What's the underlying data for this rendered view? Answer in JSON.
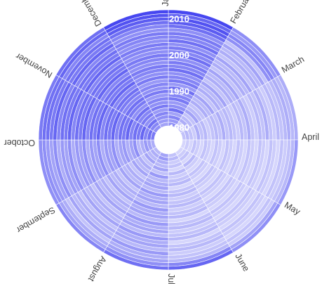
{
  "chart_data": {
    "type": "heatmap",
    "layout": "radial",
    "title": "",
    "months": [
      "January",
      "February",
      "March",
      "April",
      "May",
      "June",
      "July",
      "August",
      "September",
      "October",
      "November",
      "December"
    ],
    "year_start": 1981,
    "year_end": 2012,
    "year_labels": [
      "1980",
      "1990",
      "2000",
      "2010"
    ],
    "color_low": "#ffffff",
    "color_high": "#3333ee",
    "value_range": [
      0,
      1
    ],
    "values_by_year": [
      [
        0.55,
        0.3,
        0.3,
        0.2,
        0.2,
        0.3,
        0.45,
        0.35,
        0.4,
        0.65,
        0.55,
        0.45
      ],
      [
        0.5,
        0.25,
        0.35,
        0.25,
        0.25,
        0.35,
        0.5,
        0.4,
        0.45,
        0.7,
        0.6,
        0.5
      ],
      [
        0.6,
        0.4,
        0.3,
        0.2,
        0.3,
        0.25,
        0.4,
        0.35,
        0.5,
        0.6,
        0.7,
        0.55
      ],
      [
        0.45,
        0.35,
        0.25,
        0.3,
        0.2,
        0.3,
        0.35,
        0.45,
        0.4,
        0.75,
        0.55,
        0.6
      ],
      [
        0.7,
        0.3,
        0.4,
        0.25,
        0.35,
        0.2,
        0.45,
        0.3,
        0.35,
        0.65,
        0.65,
        0.5
      ],
      [
        0.55,
        0.45,
        0.3,
        0.2,
        0.25,
        0.35,
        0.3,
        0.4,
        0.55,
        0.7,
        0.6,
        0.65
      ],
      [
        0.5,
        0.35,
        0.35,
        0.3,
        0.2,
        0.25,
        0.5,
        0.35,
        0.45,
        0.6,
        0.7,
        0.55
      ],
      [
        0.65,
        0.3,
        0.25,
        0.25,
        0.3,
        0.3,
        0.35,
        0.45,
        0.4,
        0.75,
        0.55,
        0.6
      ],
      [
        0.6,
        0.4,
        0.3,
        0.2,
        0.25,
        0.35,
        0.4,
        0.3,
        0.5,
        0.65,
        0.65,
        0.5
      ],
      [
        0.55,
        0.35,
        0.35,
        0.3,
        0.2,
        0.2,
        0.45,
        0.4,
        0.45,
        0.7,
        0.7,
        0.65
      ],
      [
        0.7,
        0.45,
        0.3,
        0.25,
        0.3,
        0.3,
        0.35,
        0.35,
        0.4,
        0.6,
        0.6,
        0.55
      ],
      [
        0.5,
        0.3,
        0.4,
        0.2,
        0.25,
        0.35,
        0.5,
        0.45,
        0.55,
        0.75,
        0.65,
        0.6
      ],
      [
        0.65,
        0.4,
        0.3,
        0.3,
        0.2,
        0.25,
        0.4,
        0.3,
        0.45,
        0.65,
        0.7,
        0.5
      ],
      [
        0.6,
        0.35,
        0.35,
        0.25,
        0.3,
        0.3,
        0.45,
        0.4,
        0.5,
        0.7,
        0.6,
        0.65
      ],
      [
        0.55,
        0.45,
        0.3,
        0.2,
        0.25,
        0.35,
        0.35,
        0.35,
        0.4,
        0.6,
        0.75,
        0.55
      ],
      [
        0.7,
        0.3,
        0.25,
        0.3,
        0.2,
        0.25,
        0.5,
        0.45,
        0.55,
        0.75,
        0.65,
        0.6
      ],
      [
        0.6,
        0.4,
        0.35,
        0.25,
        0.3,
        0.3,
        0.4,
        0.3,
        0.45,
        0.65,
        0.7,
        0.65
      ],
      [
        0.65,
        0.35,
        0.3,
        0.2,
        0.25,
        0.35,
        0.45,
        0.4,
        0.5,
        0.7,
        0.6,
        0.55
      ],
      [
        0.55,
        0.45,
        0.4,
        0.3,
        0.2,
        0.2,
        0.35,
        0.35,
        0.4,
        0.6,
        0.75,
        0.6
      ],
      [
        0.7,
        0.3,
        0.3,
        0.25,
        0.3,
        0.3,
        0.5,
        0.45,
        0.55,
        0.75,
        0.65,
        0.65
      ],
      [
        0.6,
        0.4,
        0.25,
        0.2,
        0.25,
        0.35,
        0.4,
        0.3,
        0.45,
        0.65,
        0.7,
        0.55
      ],
      [
        0.65,
        0.35,
        0.35,
        0.3,
        0.2,
        0.25,
        0.45,
        0.4,
        0.5,
        0.7,
        0.6,
        0.6
      ],
      [
        0.55,
        0.45,
        0.3,
        0.25,
        0.3,
        0.3,
        0.35,
        0.35,
        0.4,
        0.6,
        0.75,
        0.65
      ],
      [
        0.7,
        0.3,
        0.4,
        0.2,
        0.25,
        0.35,
        0.5,
        0.45,
        0.55,
        0.75,
        0.65,
        0.55
      ],
      [
        0.6,
        0.4,
        0.3,
        0.3,
        0.2,
        0.2,
        0.4,
        0.3,
        0.45,
        0.65,
        0.7,
        0.6
      ],
      [
        0.65,
        0.35,
        0.25,
        0.25,
        0.3,
        0.3,
        0.45,
        0.4,
        0.5,
        0.7,
        0.6,
        0.65
      ],
      [
        0.55,
        0.45,
        0.35,
        0.2,
        0.25,
        0.35,
        0.35,
        0.35,
        0.4,
        0.6,
        0.75,
        0.55
      ],
      [
        0.7,
        0.3,
        0.3,
        0.3,
        0.2,
        0.25,
        0.5,
        0.45,
        0.55,
        0.75,
        0.65,
        0.6
      ],
      [
        0.8,
        0.55,
        0.35,
        0.25,
        0.3,
        0.3,
        0.4,
        0.3,
        0.45,
        0.65,
        0.7,
        0.7
      ],
      [
        0.85,
        0.6,
        0.4,
        0.3,
        0.25,
        0.35,
        0.45,
        0.4,
        0.5,
        0.7,
        0.6,
        0.8
      ],
      [
        0.75,
        0.5,
        0.35,
        0.35,
        0.45,
        0.6,
        0.55,
        0.45,
        0.55,
        0.7,
        0.75,
        0.85
      ],
      [
        0.9,
        0.55,
        0.4,
        0.5,
        0.55,
        0.75,
        0.7,
        0.6,
        0.55,
        0.65,
        0.7,
        0.9
      ]
    ]
  }
}
